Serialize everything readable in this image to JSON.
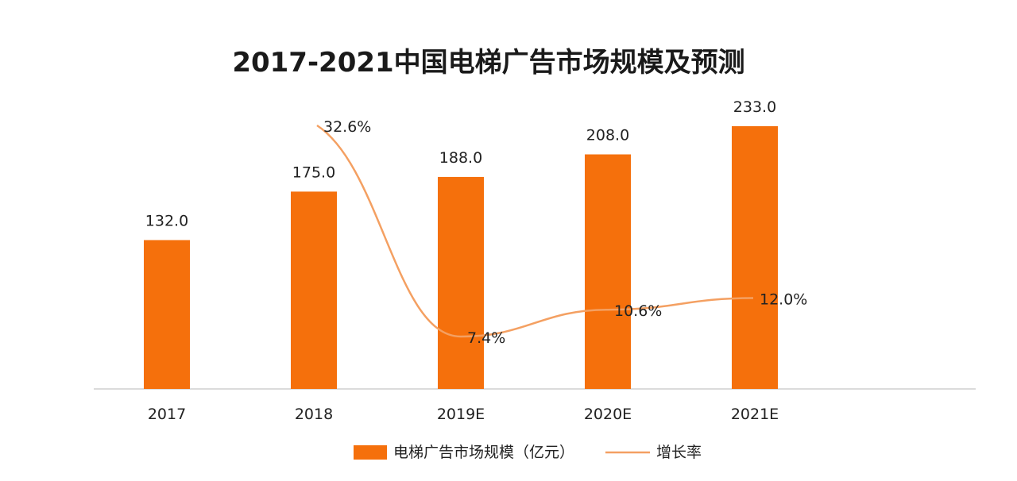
{
  "chart_data": {
    "type": "bar",
    "title": "2017-2021中国电梯广告市场规模及预测",
    "categories": [
      "2017",
      "2018",
      "2019E",
      "2020E",
      "2021E"
    ],
    "series": [
      {
        "name": "电梯广告市场规模（亿元）",
        "type": "bar",
        "values": [
          132.0,
          175.0,
          188.0,
          208.0,
          233.0
        ],
        "labels": [
          "132.0",
          "175.0",
          "188.0",
          "208.0",
          "233.0"
        ],
        "color": "#F5700C"
      },
      {
        "name": "增长率",
        "type": "line",
        "values": [
          null,
          32.6,
          7.4,
          10.6,
          12.0
        ],
        "labels": [
          "",
          "32.6%",
          "7.4%",
          "10.6%",
          "12.0%"
        ],
        "color": "#F4A062"
      }
    ],
    "xlabel": "",
    "ylabel": "",
    "ylim": [
      0,
      240
    ],
    "y2lim": [
      0,
      35
    ],
    "legend": "bottom-center"
  }
}
